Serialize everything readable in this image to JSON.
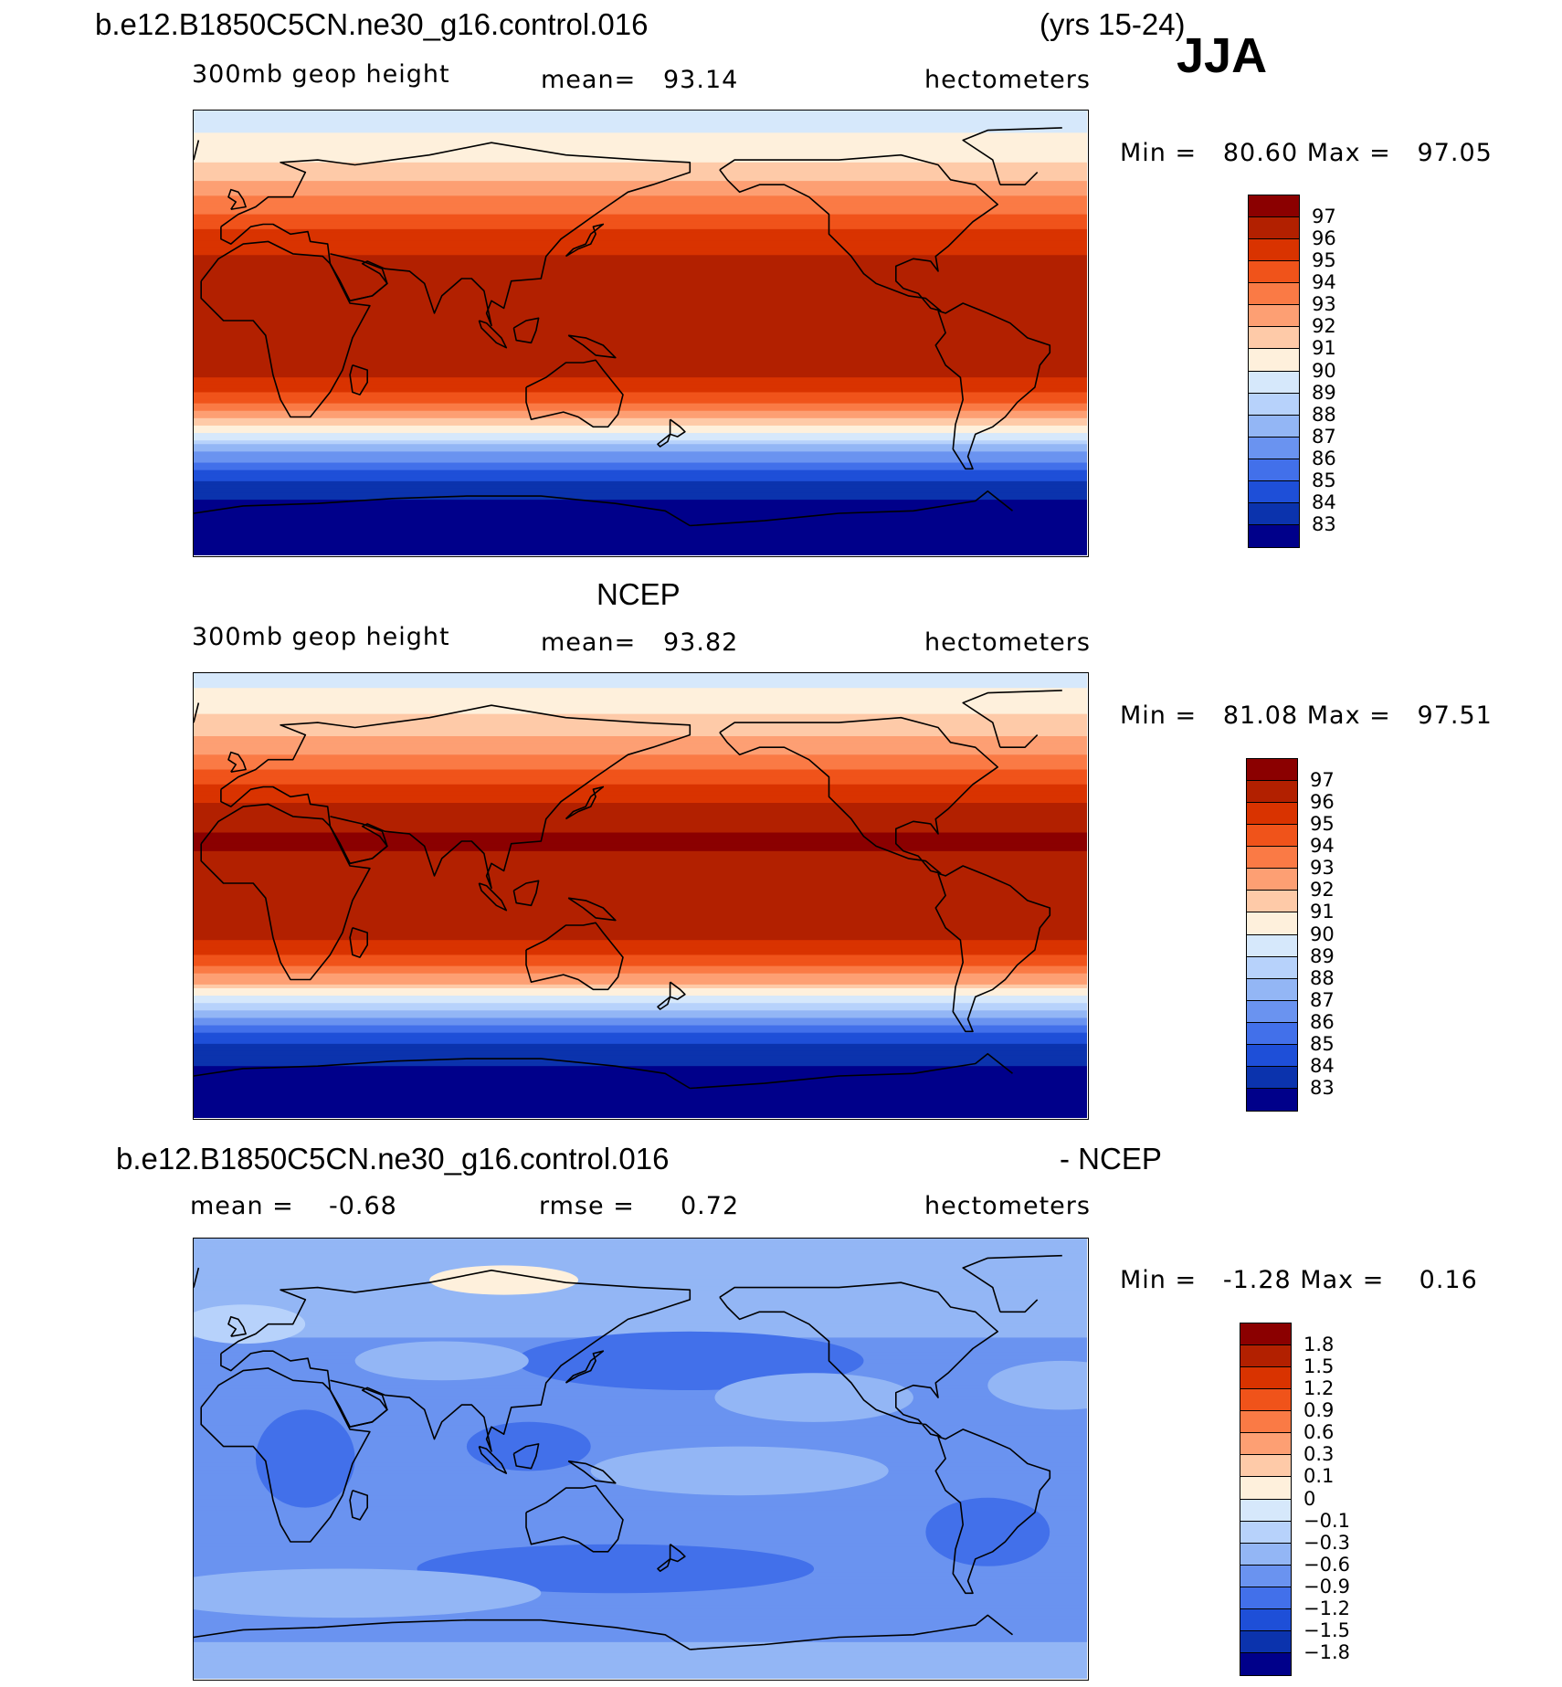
{
  "header": {
    "case_name": "b.e12.B1850C5CN.ne30_g16.control.016",
    "years": "(yrs 15-24)",
    "season": "JJA"
  },
  "chart_data": [
    {
      "type": "heatmap",
      "title": "b.e12.B1850C5CN.ne30_g16.control.016",
      "field": "300mb geop height",
      "stat_left": "mean=",
      "stat_left_value": "93.14",
      "units": "hectometers",
      "minmax": "Min =   80.60 Max =   97.05",
      "min": 80.6,
      "max": 97.05,
      "levels": [
        "97",
        "96",
        "95",
        "94",
        "93",
        "92",
        "91",
        "90",
        "89",
        "88",
        "87",
        "86",
        "85",
        "84",
        "83"
      ],
      "colors": [
        "#8b0000",
        "#b22000",
        "#d93300",
        "#f0531a",
        "#fa7a45",
        "#fd9f73",
        "#fecaa8",
        "#fef0dc",
        "#d6e8fb",
        "#b7d2fb",
        "#93b6f5",
        "#6a93f0",
        "#4270ea",
        "#1e4fd8",
        "#0b33ad",
        "#00008a"
      ],
      "bands": [
        {
          "lat": 90,
          "v": 89.5
        },
        {
          "lat": 75,
          "v": 90.3
        },
        {
          "lat": 65,
          "v": 91.4
        },
        {
          "lat": 58,
          "v": 92.6
        },
        {
          "lat": 50,
          "v": 93.8
        },
        {
          "lat": 42,
          "v": 95.0
        },
        {
          "lat": 34,
          "v": 95.9
        },
        {
          "lat": 20,
          "v": 96.4
        },
        {
          "lat": 0,
          "v": 96.5
        },
        {
          "lat": -15,
          "v": 96.3
        },
        {
          "lat": -22,
          "v": 95.4
        },
        {
          "lat": -28,
          "v": 94.0
        },
        {
          "lat": -34,
          "v": 92.4
        },
        {
          "lat": -39,
          "v": 90.6
        },
        {
          "lat": -44,
          "v": 88.6
        },
        {
          "lat": -50,
          "v": 86.5
        },
        {
          "lat": -57,
          "v": 84.5
        },
        {
          "lat": -64,
          "v": 83.2
        },
        {
          "lat": -90,
          "v": 81.5
        }
      ]
    },
    {
      "type": "heatmap",
      "title": "NCEP",
      "field": "300mb geop height",
      "stat_left": "mean=",
      "stat_left_value": "93.82",
      "units": "hectometers",
      "minmax": "Min =   81.08 Max =   97.51",
      "min": 81.08,
      "max": 97.51,
      "levels": [
        "97",
        "96",
        "95",
        "94",
        "93",
        "92",
        "91",
        "90",
        "89",
        "88",
        "87",
        "86",
        "85",
        "84",
        "83"
      ],
      "colors": [
        "#8b0000",
        "#b22000",
        "#d93300",
        "#f0531a",
        "#fa7a45",
        "#fd9f73",
        "#fecaa8",
        "#fef0dc",
        "#d6e8fb",
        "#b7d2fb",
        "#93b6f5",
        "#6a93f0",
        "#4270ea",
        "#1e4fd8",
        "#0b33ad",
        "#00008a"
      ],
      "bands": [
        {
          "lat": 90,
          "v": 89.5
        },
        {
          "lat": 78,
          "v": 90.5
        },
        {
          "lat": 68,
          "v": 91.5
        },
        {
          "lat": 60,
          "v": 92.6
        },
        {
          "lat": 52,
          "v": 93.9
        },
        {
          "lat": 44,
          "v": 95.2
        },
        {
          "lat": 36,
          "v": 96.3
        },
        {
          "lat": 22,
          "v": 97.2
        },
        {
          "lat": 10,
          "v": 96.6
        },
        {
          "lat": -15,
          "v": 96.4
        },
        {
          "lat": -22,
          "v": 95.5
        },
        {
          "lat": -28,
          "v": 94.2
        },
        {
          "lat": -34,
          "v": 92.5
        },
        {
          "lat": -39,
          "v": 90.7
        },
        {
          "lat": -44,
          "v": 88.7
        },
        {
          "lat": -50,
          "v": 86.6
        },
        {
          "lat": -57,
          "v": 84.6
        },
        {
          "lat": -64,
          "v": 83.3
        },
        {
          "lat": -90,
          "v": 81.8
        }
      ]
    },
    {
      "type": "heatmap",
      "title": "b.e12.B1850C5CN.ne30_g16.control.016",
      "title_suffix": "- NCEP",
      "field": "mean =",
      "field_value": "-0.68",
      "stat_left": "rmse =",
      "stat_left_value": "0.72",
      "units": "hectometers",
      "minmax": "Min =   -1.28 Max =    0.16",
      "min": -1.28,
      "max": 0.16,
      "levels": [
        "1.8",
        "1.5",
        "1.2",
        "0.9",
        "0.6",
        "0.3",
        "0.1",
        "0",
        "-0.1",
        "-0.3",
        "-0.6",
        "-0.9",
        "-1.2",
        "-1.5",
        "-1.8"
      ],
      "colors": [
        "#8b0000",
        "#b22000",
        "#d93300",
        "#f0531a",
        "#fa7a45",
        "#fd9f73",
        "#fecaa8",
        "#fef0dc",
        "#d6e8fb",
        "#b7d2fb",
        "#93b6f5",
        "#6a93f0",
        "#4270ea",
        "#1e4fd8",
        "#0b33ad",
        "#00008a"
      ],
      "bands": [
        {
          "lat": 90,
          "v": -0.45
        },
        {
          "lat": 60,
          "v": -0.5
        },
        {
          "lat": 40,
          "v": -0.7
        },
        {
          "lat": 20,
          "v": -0.65
        },
        {
          "lat": 0,
          "v": -0.75
        },
        {
          "lat": -20,
          "v": -0.7
        },
        {
          "lat": -40,
          "v": -0.8
        },
        {
          "lat": -60,
          "v": -0.65
        },
        {
          "lat": -90,
          "v": -0.55
        }
      ]
    }
  ]
}
